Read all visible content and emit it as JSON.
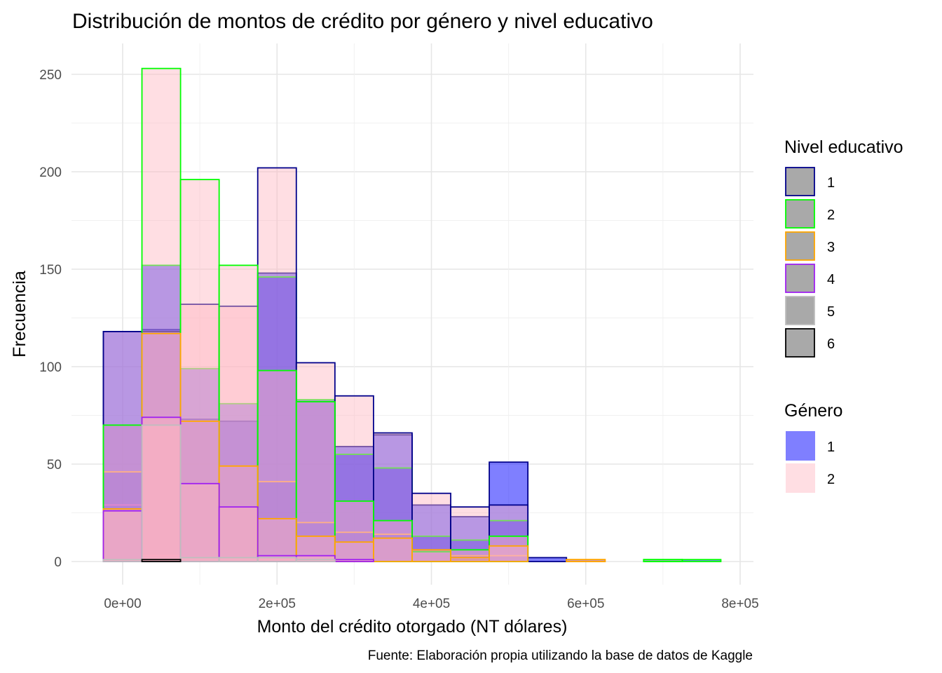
{
  "chart_data": {
    "type": "histogram",
    "title": "Distribución de montos de crédito por género y nivel educativo",
    "xlabel": "Monto del crédito otorgado (NT dólares)",
    "ylabel": "Frecuencia",
    "caption": "Fuente: Elaboración propia utilizando la base de datos de Kaggle",
    "xlim": [
      -30000,
      800000
    ],
    "ylim": [
      0,
      250
    ],
    "x_ticks": [
      0,
      200000,
      400000,
      600000,
      800000
    ],
    "x_tick_labels": [
      "0e+00",
      "2e+05",
      "4e+05",
      "6e+05",
      "8e+05"
    ],
    "y_ticks": [
      0,
      50,
      100,
      150,
      200,
      250
    ],
    "y_tick_labels": [
      "0",
      "50",
      "100",
      "150",
      "200",
      "250"
    ],
    "grid": true,
    "bin_width": 50000,
    "bin_centers": [
      0,
      50000,
      100000,
      150000,
      200000,
      250000,
      300000,
      350000,
      400000,
      450000,
      500000,
      550000,
      600000,
      650000,
      700000,
      750000
    ],
    "legend_fill": {
      "title": "Género",
      "entries": [
        {
          "label": "1",
          "color": "#0000ff"
        },
        {
          "label": "2",
          "color": "#ffb6c1"
        }
      ]
    },
    "legend_outline": {
      "title": "Nivel educativo",
      "entries": [
        {
          "label": "1",
          "color": "#00008b"
        },
        {
          "label": "2",
          "color": "#00ff00"
        },
        {
          "label": "3",
          "color": "#ffa500"
        },
        {
          "label": "4",
          "color": "#a020f0"
        },
        {
          "label": "5",
          "color": "#bebebe"
        },
        {
          "label": "6",
          "color": "#000000"
        }
      ]
    },
    "series": [
      {
        "genero": "1",
        "educacion": "1",
        "values": [
          118,
          119,
          73,
          72,
          148,
          82,
          59,
          65,
          29,
          23,
          51,
          2,
          0,
          0,
          0,
          0
        ]
      },
      {
        "genero": "1",
        "educacion": "2",
        "values": [
          70,
          152,
          99,
          81,
          146,
          83,
          55,
          48,
          13,
          11,
          21,
          0,
          0,
          0,
          1,
          1
        ]
      },
      {
        "genero": "1",
        "educacion": "3",
        "values": [
          46,
          118,
          72,
          49,
          41,
          20,
          15,
          14,
          6,
          3,
          3,
          0,
          1,
          0,
          0,
          0
        ]
      },
      {
        "genero": "1",
        "educacion": "4",
        "values": [
          29,
          3,
          2,
          2,
          2,
          0,
          1,
          0,
          0,
          0,
          0,
          0,
          0,
          0,
          0,
          0
        ]
      },
      {
        "genero": "1",
        "educacion": "5",
        "values": [
          1,
          1,
          0,
          0,
          0,
          0,
          0,
          0,
          0,
          0,
          0,
          0,
          0,
          0,
          0,
          0
        ]
      },
      {
        "genero": "1",
        "educacion": "6",
        "values": [
          0,
          1,
          0,
          0,
          0,
          0,
          0,
          0,
          0,
          1,
          0,
          0,
          0,
          0,
          0,
          0
        ]
      },
      {
        "genero": "2",
        "educacion": "1",
        "values": [
          118,
          118,
          132,
          131,
          202,
          102,
          85,
          66,
          35,
          28,
          29,
          0,
          0,
          0,
          0,
          0
        ]
      },
      {
        "genero": "2",
        "educacion": "2",
        "values": [
          70,
          253,
          196,
          152,
          98,
          82,
          31,
          21,
          5,
          6,
          13,
          0,
          0,
          0,
          1,
          0
        ]
      },
      {
        "genero": "2",
        "educacion": "3",
        "values": [
          27,
          117,
          72,
          49,
          22,
          13,
          10,
          12,
          6,
          2,
          8,
          0,
          1,
          0,
          0,
          0
        ]
      },
      {
        "genero": "2",
        "educacion": "4",
        "values": [
          26,
          74,
          40,
          28,
          3,
          3,
          1,
          0,
          0,
          0,
          0,
          0,
          0,
          0,
          0,
          0
        ]
      },
      {
        "genero": "2",
        "educacion": "5",
        "values": [
          1,
          70,
          2,
          2,
          2,
          1,
          0,
          0,
          0,
          0,
          0,
          0,
          0,
          0,
          0,
          0
        ]
      },
      {
        "genero": "2",
        "educacion": "6",
        "values": [
          0,
          1,
          0,
          0,
          0,
          0,
          0,
          0,
          0,
          0,
          0,
          0,
          0,
          0,
          0,
          0
        ]
      }
    ]
  }
}
